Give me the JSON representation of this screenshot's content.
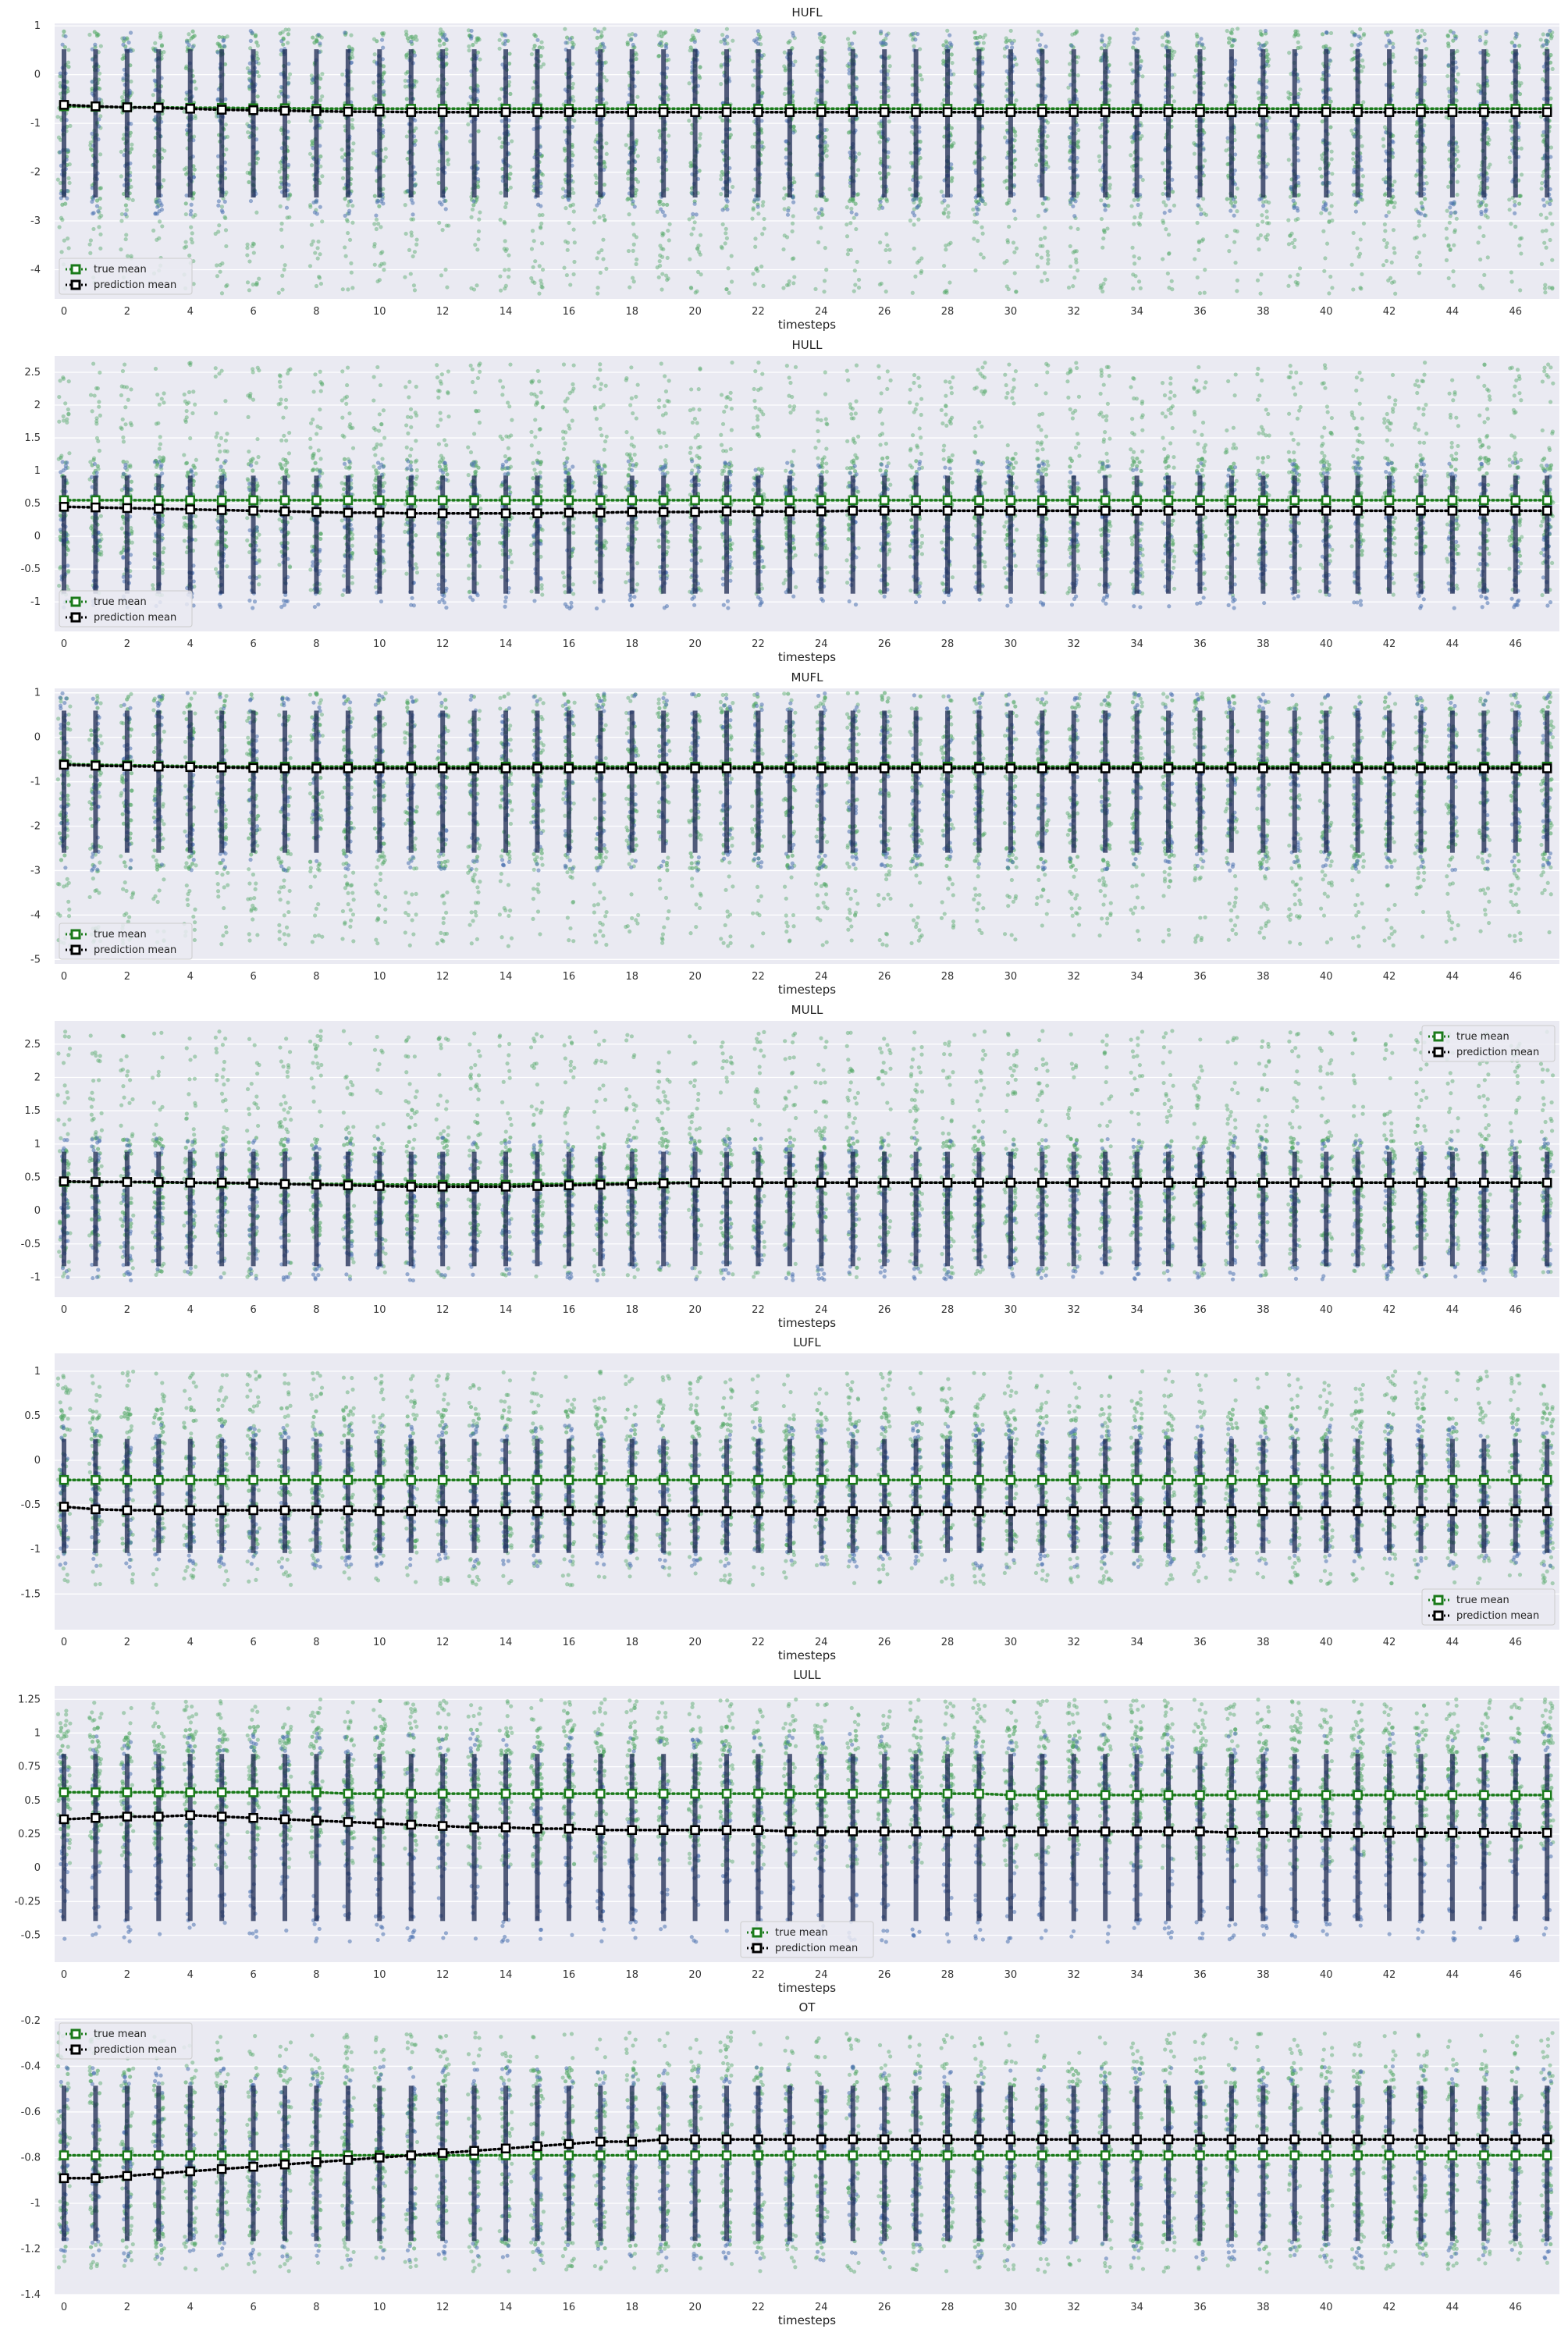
{
  "figure": {
    "background": "#ffffff",
    "axes_bg": "#eaeaf2",
    "grid": "#ffffff"
  },
  "colors": {
    "true_points": "#55a868",
    "pred_points": "#4c72b0",
    "true_line": "#1a7a1a",
    "pred_line": "#000000",
    "pred_band": "#1c2a52"
  },
  "chart_data": [
    {
      "type": "scatter",
      "title": "HUFL",
      "xlabel": "timesteps",
      "ylabel": "",
      "xticks": [
        0,
        2,
        4,
        6,
        8,
        10,
        12,
        14,
        16,
        18,
        20,
        22,
        24,
        26,
        28,
        30,
        32,
        34,
        36,
        38,
        40,
        42,
        44,
        46
      ],
      "yticks": [
        1,
        0,
        -1,
        -2,
        -3,
        -4
      ],
      "ylim": [
        -4.6,
        1.05
      ],
      "grid": true,
      "legend": {
        "placement": "lower-left",
        "entries": [
          "true mean",
          "prediction mean"
        ]
      },
      "true_mean": [
        -0.65,
        -0.66,
        -0.67,
        -0.67,
        -0.68,
        -0.68,
        -0.69,
        -0.69,
        -0.7,
        -0.7,
        -0.7,
        -0.7,
        -0.7,
        -0.7,
        -0.7,
        -0.7,
        -0.7,
        -0.7,
        -0.7,
        -0.7,
        -0.7,
        -0.7,
        -0.7,
        -0.7,
        -0.7,
        -0.7,
        -0.7,
        -0.7,
        -0.7,
        -0.7,
        -0.7,
        -0.7,
        -0.7,
        -0.7,
        -0.7,
        -0.7,
        -0.7,
        -0.7,
        -0.7,
        -0.7,
        -0.7,
        -0.7,
        -0.7,
        -0.7,
        -0.7,
        -0.7,
        -0.7,
        -0.7
      ],
      "prediction_mean": [
        -0.62,
        -0.65,
        -0.67,
        -0.68,
        -0.7,
        -0.72,
        -0.73,
        -0.74,
        -0.75,
        -0.76,
        -0.76,
        -0.77,
        -0.77,
        -0.77,
        -0.77,
        -0.77,
        -0.77,
        -0.77,
        -0.77,
        -0.77,
        -0.77,
        -0.77,
        -0.77,
        -0.77,
        -0.77,
        -0.77,
        -0.77,
        -0.77,
        -0.77,
        -0.77,
        -0.77,
        -0.77,
        -0.77,
        -0.77,
        -0.77,
        -0.77,
        -0.77,
        -0.77,
        -0.77,
        -0.77,
        -0.77,
        -0.77,
        -0.77,
        -0.77,
        -0.77,
        -0.77,
        -0.77,
        -0.77
      ],
      "true_range": [
        -4.5,
        0.95
      ],
      "true_dense_range": [
        -2.7,
        0.9
      ],
      "prediction_range": [
        -2.9,
        0.9
      ]
    },
    {
      "type": "scatter",
      "title": "HULL",
      "xlabel": "timesteps",
      "ylabel": "",
      "xticks": [
        0,
        2,
        4,
        6,
        8,
        10,
        12,
        14,
        16,
        18,
        20,
        22,
        24,
        26,
        28,
        30,
        32,
        34,
        36,
        38,
        40,
        42,
        44,
        46
      ],
      "yticks": [
        2.5,
        2.0,
        1.5,
        1.0,
        0.5,
        0.0,
        -0.5,
        -1.0
      ],
      "ylim": [
        -1.45,
        2.75
      ],
      "grid": true,
      "legend": {
        "placement": "lower-left",
        "entries": [
          "true mean",
          "prediction mean"
        ]
      },
      "true_mean": [
        0.55,
        0.55,
        0.55,
        0.55,
        0.55,
        0.55,
        0.55,
        0.55,
        0.55,
        0.55,
        0.55,
        0.55,
        0.55,
        0.55,
        0.55,
        0.55,
        0.55,
        0.55,
        0.55,
        0.55,
        0.55,
        0.55,
        0.55,
        0.55,
        0.55,
        0.55,
        0.55,
        0.55,
        0.55,
        0.55,
        0.55,
        0.55,
        0.55,
        0.55,
        0.55,
        0.55,
        0.55,
        0.55,
        0.55,
        0.55,
        0.55,
        0.55,
        0.55,
        0.55,
        0.55,
        0.55,
        0.55,
        0.55
      ],
      "prediction_mean": [
        0.45,
        0.44,
        0.43,
        0.42,
        0.41,
        0.4,
        0.39,
        0.38,
        0.37,
        0.36,
        0.36,
        0.35,
        0.35,
        0.35,
        0.35,
        0.35,
        0.36,
        0.36,
        0.37,
        0.37,
        0.37,
        0.38,
        0.38,
        0.38,
        0.38,
        0.39,
        0.39,
        0.39,
        0.39,
        0.39,
        0.39,
        0.39,
        0.39,
        0.39,
        0.39,
        0.39,
        0.39,
        0.39,
        0.39,
        0.39,
        0.39,
        0.39,
        0.39,
        0.39,
        0.39,
        0.39,
        0.39,
        0.39
      ],
      "true_range": [
        -0.9,
        2.65
      ],
      "true_dense_range": [
        -0.3,
        1.2
      ],
      "prediction_range": [
        -1.1,
        1.15
      ]
    },
    {
      "type": "scatter",
      "title": "MUFL",
      "xlabel": "timesteps",
      "ylabel": "",
      "xticks": [
        0,
        2,
        4,
        6,
        8,
        10,
        12,
        14,
        16,
        18,
        20,
        22,
        24,
        26,
        28,
        30,
        32,
        34,
        36,
        38,
        40,
        42,
        44,
        46
      ],
      "yticks": [
        1,
        0,
        -1,
        -2,
        -3,
        -4,
        -5
      ],
      "ylim": [
        -5.1,
        1.1
      ],
      "grid": true,
      "legend": {
        "placement": "lower-left",
        "entries": [
          "true mean",
          "prediction mean"
        ]
      },
      "true_mean": [
        -0.6,
        -0.62,
        -0.63,
        -0.64,
        -0.65,
        -0.66,
        -0.66,
        -0.66,
        -0.66,
        -0.66,
        -0.66,
        -0.66,
        -0.66,
        -0.66,
        -0.66,
        -0.66,
        -0.66,
        -0.66,
        -0.66,
        -0.66,
        -0.66,
        -0.66,
        -0.66,
        -0.66,
        -0.66,
        -0.66,
        -0.66,
        -0.66,
        -0.66,
        -0.66,
        -0.66,
        -0.66,
        -0.66,
        -0.66,
        -0.66,
        -0.66,
        -0.66,
        -0.66,
        -0.66,
        -0.66,
        -0.66,
        -0.66,
        -0.66,
        -0.66,
        -0.66,
        -0.66,
        -0.66,
        -0.66
      ],
      "prediction_mean": [
        -0.62,
        -0.64,
        -0.65,
        -0.66,
        -0.67,
        -0.68,
        -0.69,
        -0.7,
        -0.7,
        -0.7,
        -0.7,
        -0.7,
        -0.7,
        -0.7,
        -0.7,
        -0.7,
        -0.7,
        -0.7,
        -0.7,
        -0.7,
        -0.7,
        -0.7,
        -0.7,
        -0.7,
        -0.7,
        -0.7,
        -0.7,
        -0.7,
        -0.7,
        -0.7,
        -0.7,
        -0.7,
        -0.7,
        -0.7,
        -0.7,
        -0.7,
        -0.7,
        -0.7,
        -0.7,
        -0.7,
        -0.7,
        -0.7,
        -0.7,
        -0.7,
        -0.7,
        -0.7,
        -0.7,
        -0.7
      ],
      "true_range": [
        -4.7,
        1.0
      ],
      "true_dense_range": [
        -3.0,
        1.0
      ],
      "prediction_range": [
        -3.0,
        1.0
      ]
    },
    {
      "type": "scatter",
      "title": "MULL",
      "xlabel": "timesteps",
      "ylabel": "",
      "xticks": [
        0,
        2,
        4,
        6,
        8,
        10,
        12,
        14,
        16,
        18,
        20,
        22,
        24,
        26,
        28,
        30,
        32,
        34,
        36,
        38,
        40,
        42,
        44,
        46
      ],
      "yticks": [
        2.5,
        2.0,
        1.5,
        1.0,
        0.5,
        0.0,
        -0.5,
        -1.0
      ],
      "ylim": [
        -1.3,
        2.85
      ],
      "grid": true,
      "legend": {
        "placement": "top-right",
        "entries": [
          "true mean",
          "prediction mean"
        ]
      },
      "true_mean": [
        0.43,
        0.43,
        0.43,
        0.42,
        0.42,
        0.41,
        0.41,
        0.4,
        0.4,
        0.4,
        0.39,
        0.39,
        0.39,
        0.39,
        0.39,
        0.4,
        0.4,
        0.41,
        0.41,
        0.42,
        0.42,
        0.42,
        0.42,
        0.42,
        0.42,
        0.42,
        0.42,
        0.42,
        0.42,
        0.42,
        0.42,
        0.42,
        0.42,
        0.42,
        0.42,
        0.42,
        0.42,
        0.42,
        0.42,
        0.42,
        0.42,
        0.42,
        0.42,
        0.42,
        0.42,
        0.42,
        0.42,
        0.42
      ],
      "prediction_mean": [
        0.44,
        0.43,
        0.43,
        0.43,
        0.42,
        0.42,
        0.41,
        0.4,
        0.39,
        0.38,
        0.37,
        0.36,
        0.36,
        0.36,
        0.36,
        0.37,
        0.38,
        0.39,
        0.4,
        0.41,
        0.42,
        0.42,
        0.42,
        0.42,
        0.42,
        0.42,
        0.42,
        0.42,
        0.42,
        0.42,
        0.42,
        0.42,
        0.42,
        0.42,
        0.42,
        0.42,
        0.42,
        0.42,
        0.42,
        0.42,
        0.42,
        0.42,
        0.42,
        0.42,
        0.42,
        0.42,
        0.42,
        0.42
      ],
      "true_range": [
        -1.0,
        2.7
      ],
      "true_dense_range": [
        -0.4,
        1.1
      ],
      "prediction_range": [
        -1.05,
        1.1
      ]
    },
    {
      "type": "scatter",
      "title": "LUFL",
      "xlabel": "timesteps",
      "ylabel": "",
      "xticks": [
        0,
        2,
        4,
        6,
        8,
        10,
        12,
        14,
        16,
        18,
        20,
        22,
        24,
        26,
        28,
        30,
        32,
        34,
        36,
        38,
        40,
        42,
        44,
        46
      ],
      "yticks": [
        1.0,
        0.5,
        0.0,
        -0.5,
        -1.0,
        -1.5
      ],
      "ylim": [
        -1.9,
        1.2
      ],
      "grid": true,
      "legend": {
        "placement": "lower-right",
        "entries": [
          "true mean",
          "prediction mean"
        ]
      },
      "true_mean": [
        -0.22,
        -0.22,
        -0.22,
        -0.22,
        -0.22,
        -0.22,
        -0.22,
        -0.22,
        -0.22,
        -0.22,
        -0.22,
        -0.22,
        -0.22,
        -0.22,
        -0.22,
        -0.22,
        -0.22,
        -0.22,
        -0.22,
        -0.22,
        -0.22,
        -0.22,
        -0.22,
        -0.22,
        -0.22,
        -0.22,
        -0.22,
        -0.22,
        -0.22,
        -0.22,
        -0.22,
        -0.22,
        -0.22,
        -0.22,
        -0.22,
        -0.22,
        -0.22,
        -0.22,
        -0.22,
        -0.22,
        -0.22,
        -0.22,
        -0.22,
        -0.22,
        -0.22,
        -0.22,
        -0.22,
        -0.22
      ],
      "prediction_mean": [
        -0.52,
        -0.55,
        -0.56,
        -0.56,
        -0.56,
        -0.56,
        -0.56,
        -0.56,
        -0.56,
        -0.56,
        -0.57,
        -0.57,
        -0.57,
        -0.57,
        -0.57,
        -0.57,
        -0.57,
        -0.57,
        -0.57,
        -0.57,
        -0.57,
        -0.57,
        -0.57,
        -0.57,
        -0.57,
        -0.57,
        -0.57,
        -0.57,
        -0.57,
        -0.57,
        -0.57,
        -0.57,
        -0.57,
        -0.57,
        -0.57,
        -0.57,
        -0.57,
        -0.57,
        -0.57,
        -0.57,
        -0.57,
        -0.57,
        -0.57,
        -0.57,
        -0.57,
        -0.57,
        -0.57,
        -0.57
      ],
      "true_range": [
        -1.4,
        1.0
      ],
      "true_dense_range": [
        -1.0,
        0.6
      ],
      "prediction_range": [
        -1.2,
        0.4
      ]
    },
    {
      "type": "scatter",
      "title": "LULL",
      "xlabel": "timesteps",
      "ylabel": "",
      "xticks": [
        0,
        2,
        4,
        6,
        8,
        10,
        12,
        14,
        16,
        18,
        20,
        22,
        24,
        26,
        28,
        30,
        32,
        34,
        36,
        38,
        40,
        42,
        44,
        46
      ],
      "yticks": [
        1.25,
        1.0,
        0.75,
        0.5,
        0.25,
        0.0,
        -0.25,
        -0.5
      ],
      "ylim": [
        -0.7,
        1.35
      ],
      "grid": true,
      "legend": {
        "placement": "lower-center",
        "entries": [
          "true mean",
          "prediction mean"
        ]
      },
      "true_mean": [
        0.56,
        0.56,
        0.56,
        0.56,
        0.56,
        0.56,
        0.56,
        0.56,
        0.56,
        0.55,
        0.55,
        0.55,
        0.55,
        0.55,
        0.55,
        0.55,
        0.55,
        0.55,
        0.55,
        0.55,
        0.55,
        0.55,
        0.55,
        0.55,
        0.55,
        0.55,
        0.55,
        0.55,
        0.55,
        0.55,
        0.54,
        0.54,
        0.54,
        0.54,
        0.54,
        0.54,
        0.54,
        0.54,
        0.54,
        0.54,
        0.54,
        0.54,
        0.54,
        0.54,
        0.54,
        0.54,
        0.54,
        0.54
      ],
      "prediction_mean": [
        0.36,
        0.37,
        0.38,
        0.38,
        0.39,
        0.38,
        0.37,
        0.36,
        0.35,
        0.34,
        0.33,
        0.32,
        0.31,
        0.3,
        0.3,
        0.29,
        0.29,
        0.28,
        0.28,
        0.28,
        0.28,
        0.28,
        0.28,
        0.27,
        0.27,
        0.27,
        0.27,
        0.27,
        0.27,
        0.27,
        0.27,
        0.27,
        0.27,
        0.27,
        0.27,
        0.27,
        0.27,
        0.26,
        0.26,
        0.26,
        0.26,
        0.26,
        0.26,
        0.26,
        0.26,
        0.26,
        0.26,
        0.26
      ],
      "true_range": [
        0.0,
        1.25
      ],
      "true_dense_range": [
        0.2,
        1.05
      ],
      "prediction_range": [
        -0.55,
        1.0
      ]
    },
    {
      "type": "scatter",
      "title": "OT",
      "xlabel": "timesteps",
      "ylabel": "",
      "xticks": [
        0,
        2,
        4,
        6,
        8,
        10,
        12,
        14,
        16,
        18,
        20,
        22,
        24,
        26,
        28,
        30,
        32,
        34,
        36,
        38,
        40,
        42,
        44,
        46
      ],
      "yticks": [
        -0.2,
        -0.4,
        -0.6,
        -0.8,
        -1.0,
        -1.2,
        -1.4
      ],
      "ylim": [
        -1.4,
        -0.19
      ],
      "grid": true,
      "legend": {
        "placement": "top-left",
        "entries": [
          "true mean",
          "prediction mean"
        ]
      },
      "true_mean": [
        -0.79,
        -0.79,
        -0.79,
        -0.79,
        -0.79,
        -0.79,
        -0.79,
        -0.79,
        -0.79,
        -0.79,
        -0.79,
        -0.79,
        -0.79,
        -0.79,
        -0.79,
        -0.79,
        -0.79,
        -0.79,
        -0.79,
        -0.79,
        -0.79,
        -0.79,
        -0.79,
        -0.79,
        -0.79,
        -0.79,
        -0.79,
        -0.79,
        -0.79,
        -0.79,
        -0.79,
        -0.79,
        -0.79,
        -0.79,
        -0.79,
        -0.79,
        -0.79,
        -0.79,
        -0.79,
        -0.79,
        -0.79,
        -0.79,
        -0.79,
        -0.79,
        -0.79,
        -0.79,
        -0.79,
        -0.79
      ],
      "prediction_mean": [
        -0.89,
        -0.89,
        -0.88,
        -0.87,
        -0.86,
        -0.85,
        -0.84,
        -0.83,
        -0.82,
        -0.81,
        -0.8,
        -0.79,
        -0.78,
        -0.77,
        -0.76,
        -0.75,
        -0.74,
        -0.73,
        -0.73,
        -0.72,
        -0.72,
        -0.72,
        -0.72,
        -0.72,
        -0.72,
        -0.72,
        -0.72,
        -0.72,
        -0.72,
        -0.72,
        -0.72,
        -0.72,
        -0.72,
        -0.72,
        -0.72,
        -0.72,
        -0.72,
        -0.72,
        -0.72,
        -0.72,
        -0.72,
        -0.72,
        -0.72,
        -0.72,
        -0.72,
        -0.72,
        -0.72,
        -0.72
      ],
      "true_range": [
        -1.3,
        -0.25
      ],
      "true_dense_range": [
        -1.2,
        -0.4
      ],
      "prediction_range": [
        -1.25,
        -0.4
      ]
    }
  ]
}
